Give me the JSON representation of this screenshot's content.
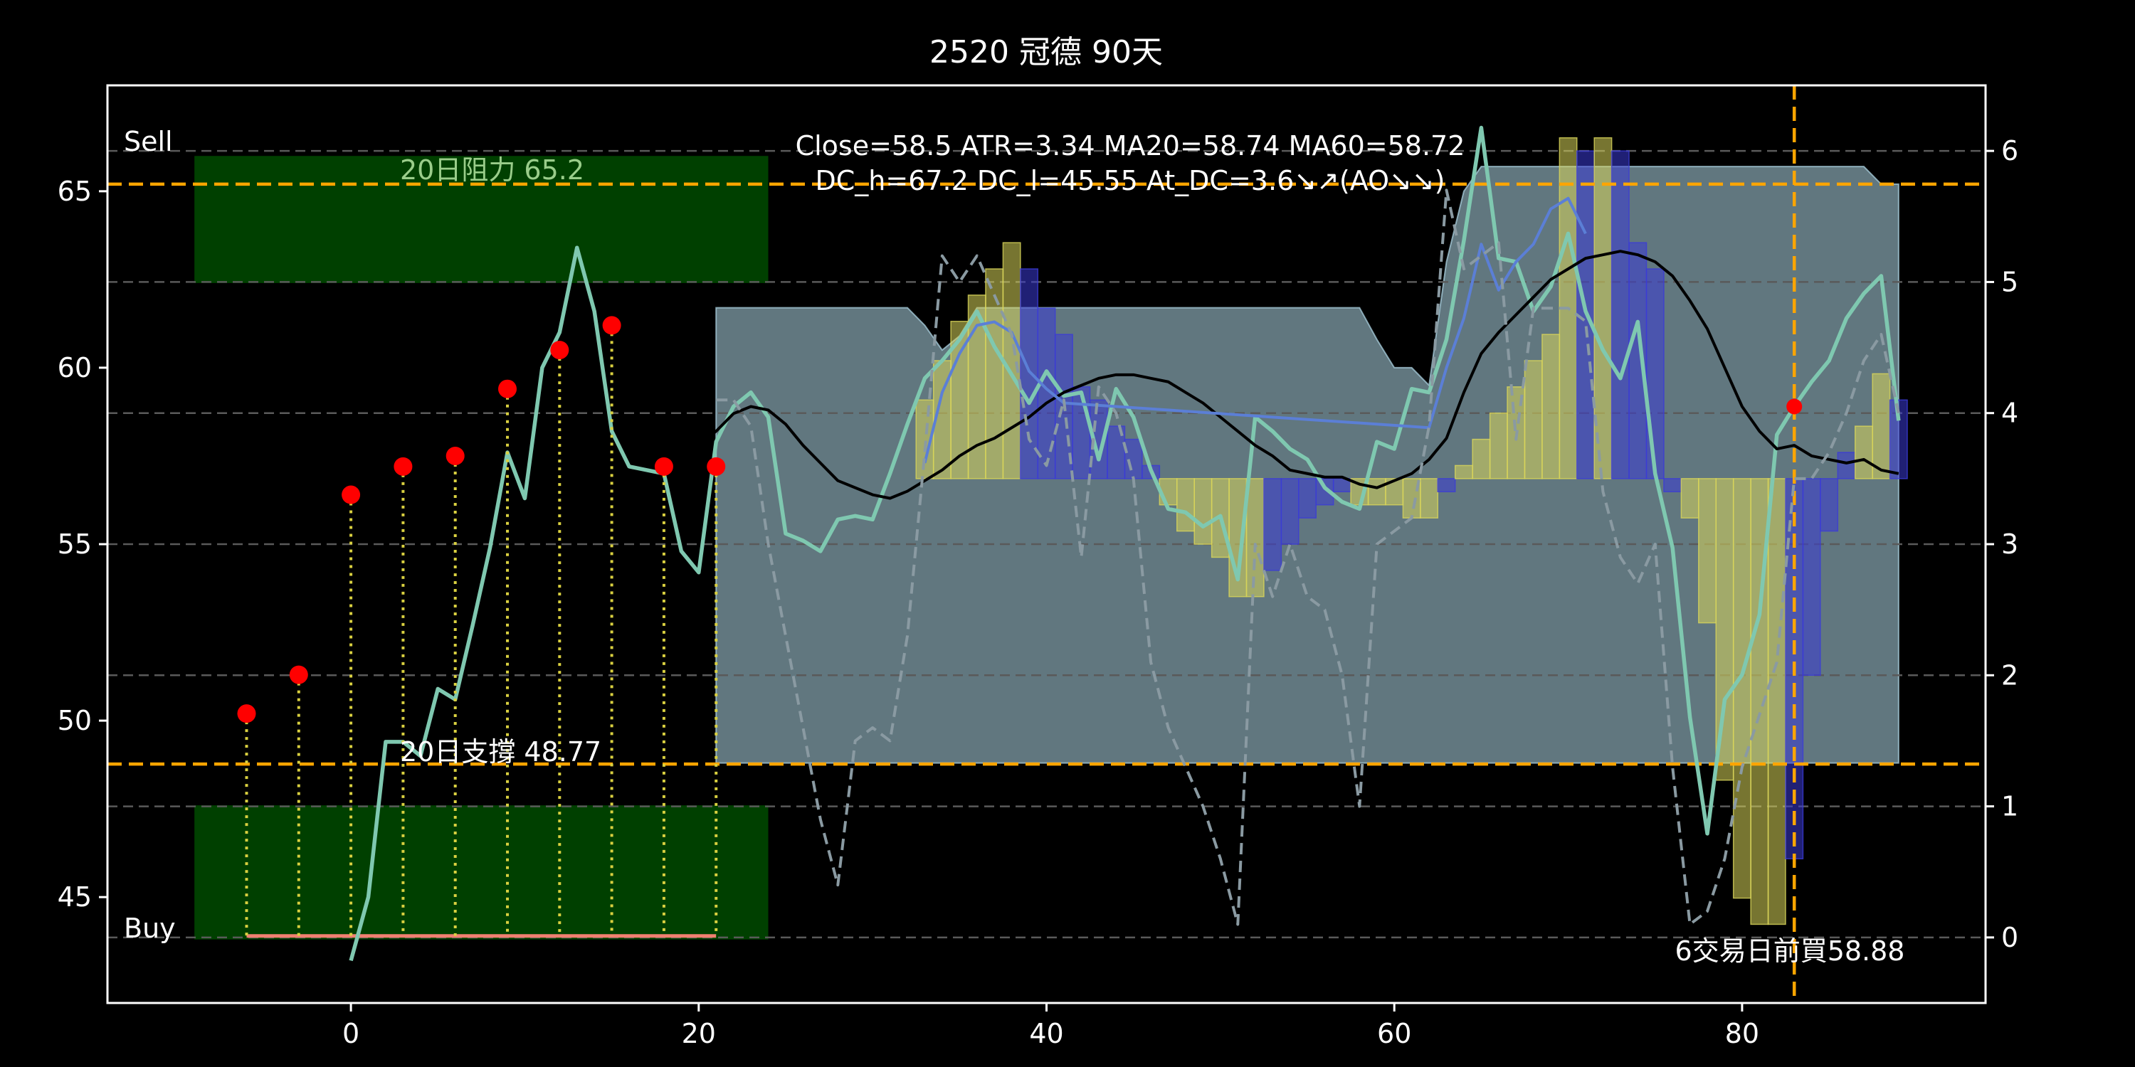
{
  "chart_data": {
    "type": "line",
    "title": "2520 冠德 90天",
    "xlabel": "",
    "ylabel": "",
    "xlim": [
      -14,
      94
    ],
    "ylim": [
      42,
      68
    ],
    "y2lim": [
      -0.5,
      6.5
    ],
    "x_ticks": [
      0,
      20,
      40,
      60,
      80
    ],
    "y_ticks": [
      45,
      50,
      55,
      60,
      65
    ],
    "y2_ticks": [
      0,
      1,
      2,
      3,
      4,
      5,
      6
    ],
    "grid": "horizontal dashed",
    "annotations": {
      "sell_label": "Sell",
      "buy_label": "Buy",
      "resistance_label": "20日阻力 65.2",
      "support_label": "20日支撐 48.77",
      "info_line1": "Close=58.5 ATR=3.34 MA20=58.74 MA60=58.72",
      "info_line2": "DC_h=67.2 DC_l=45.55 At_DC=3.6↘↗(AO↘↘)",
      "buy_note": "6交易日前買58.88"
    },
    "resistance": 65.2,
    "support": 48.77,
    "vline_x": 83,
    "sell_zone": {
      "x": [
        -9,
        24
      ],
      "y": [
        62.4,
        66.0
      ]
    },
    "buy_zone": {
      "x": [
        -9,
        24
      ],
      "y": [
        43.8,
        47.6
      ]
    },
    "baseline": {
      "x": [
        -6,
        21
      ],
      "y": 43.9
    },
    "band": {
      "x": [
        21,
        32,
        33,
        34,
        35,
        36,
        37,
        38,
        39,
        40,
        41,
        42,
        43,
        44,
        45,
        46,
        47,
        48,
        49,
        50,
        51,
        52,
        53,
        54,
        55,
        56,
        57,
        58,
        59,
        60,
        61,
        62,
        63,
        64,
        65,
        66,
        67,
        68,
        69,
        70,
        71,
        72,
        73,
        74,
        75,
        76,
        77,
        78,
        79,
        80,
        81,
        82,
        83,
        84,
        85,
        86,
        87,
        88,
        89
      ],
      "upper": [
        61.7,
        61.7,
        61.2,
        60.5,
        60.9,
        61.7,
        61.7,
        61.7,
        61.7,
        61.7,
        61.7,
        61.7,
        61.7,
        61.7,
        61.7,
        61.7,
        61.7,
        61.7,
        61.7,
        61.7,
        61.7,
        61.7,
        61.7,
        61.7,
        61.7,
        61.7,
        61.7,
        61.7,
        60.8,
        60.0,
        60.0,
        59.5,
        63.0,
        65.0,
        65.7,
        65.7,
        65.7,
        65.7,
        65.7,
        65.7,
        65.7,
        65.7,
        65.7,
        65.7,
        65.7,
        65.7,
        65.7,
        65.7,
        65.7,
        65.7,
        65.7,
        65.7,
        65.7,
        65.7,
        65.7,
        65.7,
        65.7,
        65.2,
        65.2
      ],
      "lower": [
        48.8,
        48.8,
        48.8,
        48.8,
        48.8,
        48.8,
        48.8,
        48.8,
        48.8,
        48.8,
        48.8,
        48.8,
        48.8,
        48.8,
        48.8,
        48.8,
        48.8,
        48.8,
        48.8,
        48.8,
        48.8,
        48.8,
        48.8,
        48.8,
        48.8,
        48.8,
        48.8,
        48.8,
        48.8,
        48.8,
        48.8,
        48.8,
        48.8,
        48.8,
        48.8,
        48.8,
        48.8,
        48.8,
        48.8,
        48.8,
        48.8,
        48.8,
        48.8,
        48.8,
        48.8,
        48.8,
        48.8,
        48.8,
        48.8,
        48.8,
        48.8,
        48.8,
        48.8,
        48.8,
        48.8,
        48.8,
        48.8,
        48.8,
        48.8
      ]
    },
    "histogram": {
      "x": [
        33,
        34,
        35,
        36,
        37,
        38,
        39,
        40,
        41,
        42,
        43,
        44,
        45,
        46,
        47,
        48,
        49,
        50,
        51,
        52,
        53,
        54,
        55,
        56,
        57,
        58,
        59,
        60,
        61,
        62,
        63,
        64,
        65,
        66,
        67,
        68,
        69,
        70,
        71,
        72,
        73,
        74,
        75,
        76,
        77,
        78,
        79,
        80,
        81,
        82,
        83,
        84,
        85,
        86,
        87,
        88,
        89
      ],
      "val": [
        0.6,
        0.9,
        1.2,
        1.4,
        1.6,
        1.8,
        1.6,
        1.3,
        1.1,
        0.7,
        0.6,
        0.4,
        0.3,
        0.1,
        -0.2,
        -0.4,
        -0.5,
        -0.6,
        -0.9,
        -0.9,
        -0.7,
        -0.5,
        -0.3,
        -0.2,
        -0.1,
        -0.2,
        -0.2,
        -0.2,
        -0.3,
        -0.3,
        -0.1,
        0.1,
        0.3,
        0.5,
        0.7,
        0.9,
        1.1,
        2.6,
        2.5,
        2.6,
        2.5,
        1.8,
        1.6,
        -0.1,
        -0.3,
        -1.1,
        -2.3,
        -3.2,
        -3.4,
        -3.4,
        -2.9,
        -1.5,
        -0.4,
        0.2,
        0.4,
        0.8,
        0.6
      ],
      "series_colors": {
        "positive_rising": "#d9d65a",
        "positive_falling": "#3b3bd6"
      }
    },
    "series": [
      {
        "key": "price",
        "axis": "left",
        "color": "#7fc8b0",
        "x": [
          0,
          1,
          2,
          3,
          4,
          5,
          6,
          7,
          8,
          9,
          10,
          11,
          12,
          13,
          14,
          15,
          16,
          17,
          18,
          19,
          20,
          21,
          22,
          23,
          24,
          25,
          26,
          27,
          28,
          29,
          30,
          31,
          32,
          33,
          34,
          35,
          36,
          37,
          38,
          39,
          40,
          41,
          42,
          43,
          44,
          45,
          46,
          47,
          48,
          49,
          50,
          51,
          52,
          53,
          54,
          55,
          56,
          57,
          58,
          59,
          60,
          61,
          62,
          63,
          64,
          65,
          66,
          67,
          68,
          69,
          70,
          71,
          72,
          73,
          74,
          75,
          76,
          77,
          78,
          79,
          80,
          81,
          82,
          83,
          84,
          85,
          86,
          87,
          88,
          89
        ],
        "y": [
          43.2,
          45.0,
          49.4,
          49.4,
          49.0,
          50.9,
          50.6,
          52.7,
          54.9,
          57.6,
          56.3,
          60.0,
          61.0,
          63.4,
          61.6,
          58.2,
          57.2,
          57.1,
          57.0,
          54.8,
          54.2,
          57.9,
          58.9,
          59.3,
          58.6,
          55.3,
          55.1,
          54.8,
          55.7,
          55.8,
          55.7,
          57.0,
          58.4,
          59.7,
          60.2,
          60.8,
          61.6,
          60.6,
          59.8,
          59.0,
          59.9,
          59.2,
          59.3,
          57.4,
          59.4,
          58.6,
          57.1,
          56.0,
          55.9,
          55.5,
          55.8,
          54.0,
          58.6,
          58.2,
          57.7,
          57.4,
          56.6,
          56.2,
          56.0,
          57.9,
          57.7,
          59.4,
          59.3,
          60.8,
          63.6,
          66.8,
          63.1,
          63.0,
          61.6,
          62.3,
          63.8,
          61.6,
          60.5,
          59.7,
          61.3,
          57.0,
          54.9,
          50.1,
          46.8,
          50.6,
          51.3,
          53.0,
          58.1,
          58.9,
          59.6,
          60.2,
          61.4,
          62.1,
          62.6,
          58.5
        ]
      },
      {
        "key": "ma20",
        "axis": "left",
        "color": "#000000",
        "x": [
          20,
          21,
          22,
          23,
          24,
          25,
          26,
          27,
          28,
          29,
          30,
          31,
          32,
          33,
          34,
          35,
          36,
          37,
          38,
          39,
          40,
          41,
          42,
          43,
          44,
          45,
          46,
          47,
          48,
          49,
          50,
          51,
          52,
          53,
          54,
          55,
          56,
          57,
          58,
          59,
          60,
          61,
          62,
          63,
          64,
          65,
          66,
          67,
          68,
          69,
          70,
          71,
          72,
          73,
          74,
          75,
          76,
          77,
          78,
          79,
          80,
          81,
          82,
          83,
          84,
          85,
          86,
          87,
          88,
          89
        ],
        "y": [
          57.8,
          58.2,
          58.7,
          58.9,
          58.8,
          58.4,
          57.8,
          57.3,
          56.8,
          56.6,
          56.4,
          56.3,
          56.5,
          56.8,
          57.1,
          57.5,
          57.8,
          58.0,
          58.3,
          58.6,
          59.0,
          59.3,
          59.5,
          59.7,
          59.8,
          59.8,
          59.7,
          59.6,
          59.3,
          59.0,
          58.6,
          58.2,
          57.8,
          57.5,
          57.1,
          57.0,
          56.9,
          56.9,
          56.7,
          56.6,
          56.8,
          57.0,
          57.4,
          58.0,
          59.3,
          60.4,
          61.0,
          61.5,
          62.0,
          62.5,
          62.8,
          63.1,
          63.2,
          63.3,
          63.2,
          63.0,
          62.6,
          61.9,
          61.1,
          60.0,
          58.9,
          58.2,
          57.7,
          57.8,
          57.5,
          57.4,
          57.3,
          57.4,
          57.1,
          57.0
        ]
      },
      {
        "key": "blue_ma",
        "axis": "left",
        "color": "#5b7fd6",
        "x": [
          33,
          34,
          35,
          36,
          37,
          38,
          39,
          40,
          41,
          62,
          63,
          64,
          65,
          66,
          67,
          68,
          69,
          70,
          71
        ],
        "y": [
          57.3,
          59.3,
          60.4,
          61.2,
          61.3,
          61.0,
          59.9,
          59.4,
          59.0,
          58.3,
          60.0,
          61.4,
          63.5,
          62.2,
          63.0,
          63.5,
          64.5,
          64.8,
          63.8
        ]
      },
      {
        "key": "oscillator",
        "axis": "right",
        "color": "#8a9aa2",
        "dashed": true,
        "x": [
          21,
          22,
          23,
          24,
          25,
          26,
          27,
          28,
          29,
          30,
          31,
          32,
          33,
          34,
          35,
          36,
          37,
          38,
          39,
          40,
          41,
          42,
          43,
          44,
          45,
          46,
          47,
          48,
          49,
          50,
          51,
          52,
          53,
          54,
          55,
          56,
          57,
          58,
          59,
          60,
          61,
          62,
          63,
          64,
          65,
          66,
          67,
          68,
          69,
          70,
          71,
          72,
          73,
          74,
          75,
          76,
          77,
          78,
          79,
          80,
          81,
          82,
          83,
          84,
          85,
          86,
          87,
          88,
          89
        ],
        "y": [
          4.1,
          4.1,
          3.9,
          3.0,
          2.3,
          1.6,
          0.9,
          0.4,
          1.5,
          1.6,
          1.5,
          2.3,
          3.7,
          5.2,
          5.0,
          5.2,
          4.9,
          4.6,
          3.8,
          3.6,
          4.1,
          2.9,
          4.2,
          4.0,
          3.5,
          2.1,
          1.6,
          1.3,
          1.0,
          0.6,
          0.1,
          3.0,
          2.6,
          3.0,
          2.6,
          2.5,
          2.0,
          1.0,
          3.0,
          3.1,
          3.2,
          3.9,
          5.7,
          5.1,
          5.2,
          5.3,
          3.8,
          4.8,
          4.8,
          4.8,
          4.7,
          3.4,
          2.9,
          2.7,
          3.0,
          1.3,
          0.1,
          0.2,
          0.6,
          1.3,
          1.7,
          2.1,
          3.5,
          3.5,
          3.7,
          4.0,
          4.4,
          4.6,
          4.0
        ]
      }
    ],
    "signals": {
      "marker_color": "#ff0000",
      "stem_color": "#d9d040",
      "x": [
        -6,
        -3,
        0,
        3,
        6,
        9,
        12,
        15,
        18,
        21
      ],
      "y": [
        50.2,
        51.3,
        56.4,
        57.2,
        57.5,
        59.4,
        60.5,
        61.2,
        57.2,
        57.2
      ],
      "extra_marker": {
        "x": 83,
        "y": 58.9
      }
    },
    "colors": {
      "zone": "#004000",
      "band": "#b0d8e8",
      "orange_line": "#ffa500",
      "grid": "#5a5a5a",
      "baseline": "#f08070",
      "resistance_text": "#9acd8a"
    }
  }
}
